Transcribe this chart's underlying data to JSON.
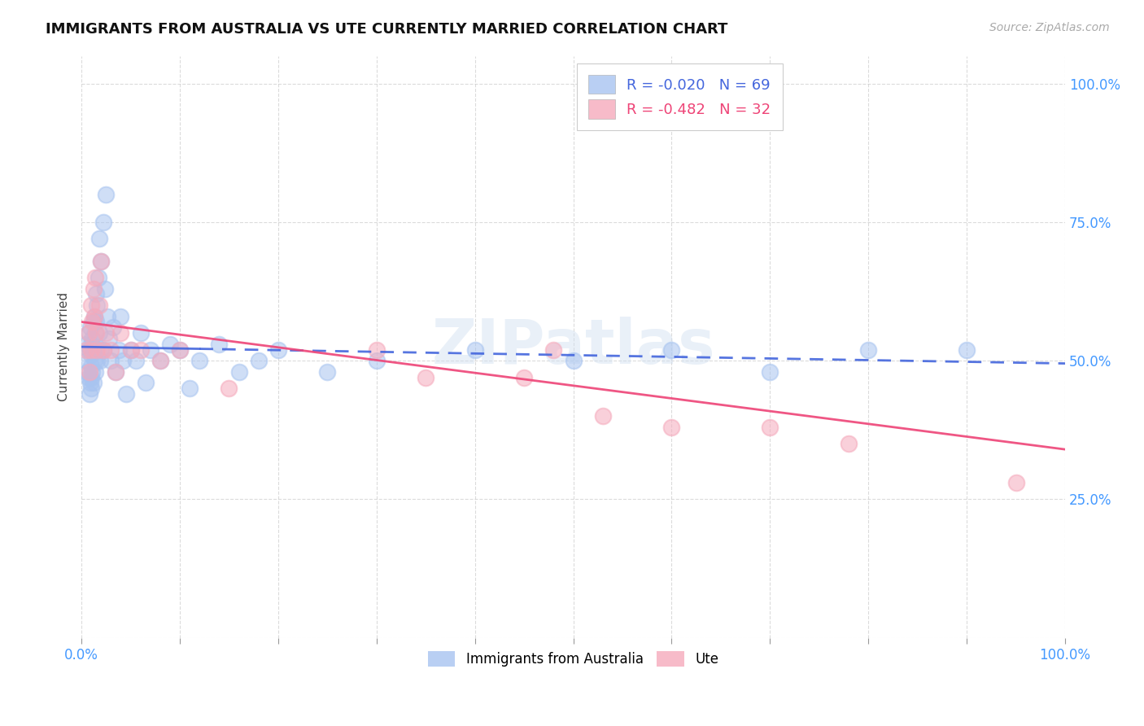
{
  "title": "IMMIGRANTS FROM AUSTRALIA VS UTE CURRENTLY MARRIED CORRELATION CHART",
  "source_text": "Source: ZipAtlas.com",
  "ylabel": "Currently Married",
  "x_min": 0.0,
  "x_max": 1.0,
  "y_min": 0.0,
  "y_max": 1.05,
  "y_ticks": [
    0.0,
    0.25,
    0.5,
    0.75,
    1.0
  ],
  "y_tick_labels": [
    "",
    "25.0%",
    "50.0%",
    "75.0%",
    "100.0%"
  ],
  "legend1_r": "R = -0.020",
  "legend1_n": "N = 69",
  "legend2_r": "R = -0.482",
  "legend2_n": "N = 32",
  "series1_color": "#a8c4f0",
  "series2_color": "#f5aabc",
  "trendline1_color": "#4466dd",
  "trendline2_color": "#ee4477",
  "title_color": "#111111",
  "title_fontsize": 13,
  "blue_x": [
    0.005,
    0.005,
    0.006,
    0.007,
    0.007,
    0.008,
    0.008,
    0.009,
    0.009,
    0.01,
    0.01,
    0.01,
    0.01,
    0.01,
    0.011,
    0.011,
    0.012,
    0.012,
    0.012,
    0.013,
    0.013,
    0.014,
    0.014,
    0.015,
    0.015,
    0.015,
    0.016,
    0.016,
    0.017,
    0.018,
    0.018,
    0.019,
    0.02,
    0.02,
    0.022,
    0.022,
    0.024,
    0.025,
    0.026,
    0.028,
    0.03,
    0.032,
    0.035,
    0.038,
    0.04,
    0.042,
    0.045,
    0.05,
    0.055,
    0.06,
    0.065,
    0.07,
    0.08,
    0.09,
    0.1,
    0.11,
    0.12,
    0.14,
    0.16,
    0.18,
    0.2,
    0.25,
    0.3,
    0.4,
    0.5,
    0.6,
    0.7,
    0.8,
    0.9
  ],
  "blue_y": [
    0.5,
    0.53,
    0.48,
    0.55,
    0.47,
    0.52,
    0.44,
    0.56,
    0.46,
    0.51,
    0.53,
    0.49,
    0.47,
    0.45,
    0.54,
    0.48,
    0.57,
    0.52,
    0.46,
    0.58,
    0.5,
    0.55,
    0.48,
    0.62,
    0.57,
    0.52,
    0.6,
    0.5,
    0.65,
    0.72,
    0.55,
    0.5,
    0.68,
    0.52,
    0.75,
    0.52,
    0.63,
    0.8,
    0.58,
    0.54,
    0.5,
    0.56,
    0.48,
    0.52,
    0.58,
    0.5,
    0.44,
    0.52,
    0.5,
    0.55,
    0.46,
    0.52,
    0.5,
    0.53,
    0.52,
    0.45,
    0.5,
    0.53,
    0.48,
    0.5,
    0.52,
    0.48,
    0.5,
    0.52,
    0.5,
    0.52,
    0.48,
    0.52,
    0.52
  ],
  "pink_x": [
    0.005,
    0.007,
    0.008,
    0.01,
    0.01,
    0.011,
    0.012,
    0.013,
    0.014,
    0.015,
    0.016,
    0.018,
    0.02,
    0.022,
    0.025,
    0.03,
    0.035,
    0.04,
    0.05,
    0.06,
    0.08,
    0.1,
    0.15,
    0.3,
    0.35,
    0.45,
    0.48,
    0.53,
    0.6,
    0.7,
    0.78,
    0.95
  ],
  "pink_y": [
    0.52,
    0.55,
    0.48,
    0.6,
    0.52,
    0.57,
    0.63,
    0.58,
    0.65,
    0.55,
    0.52,
    0.6,
    0.68,
    0.52,
    0.55,
    0.52,
    0.48,
    0.55,
    0.52,
    0.52,
    0.5,
    0.52,
    0.45,
    0.52,
    0.47,
    0.47,
    0.52,
    0.4,
    0.38,
    0.38,
    0.35,
    0.28
  ]
}
